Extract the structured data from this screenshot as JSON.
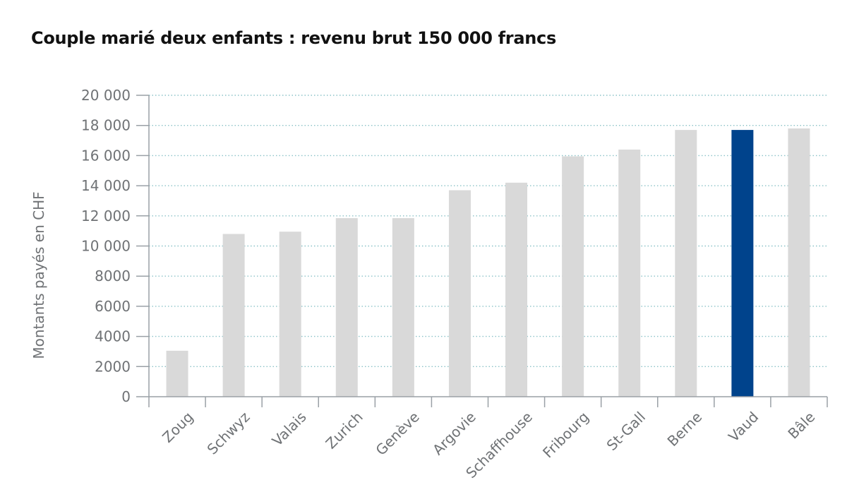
{
  "chart_data": {
    "type": "bar",
    "title": "Couple marié deux enfants : revenu brut 150 000 francs",
    "xlabel": "",
    "ylabel": "Montants payés en CHF",
    "categories": [
      "Zoug",
      "Schwyz",
      "Valais",
      "Zurich",
      "Genève",
      "Argovie",
      "Schaffhouse",
      "Fribourg",
      "St-Gall",
      "Berne",
      "Vaud",
      "Bâle"
    ],
    "values": [
      3050,
      10800,
      10950,
      11850,
      11850,
      13700,
      14200,
      15950,
      16400,
      17700,
      17700,
      17800
    ],
    "highlight": "Vaud",
    "ylim": [
      0,
      20000
    ],
    "yticks": [
      0,
      2000,
      4000,
      6000,
      8000,
      10000,
      12000,
      14000,
      16000,
      18000,
      20000
    ],
    "ytick_labels": [
      "0",
      "2000",
      "4000",
      "6000",
      "8000",
      "10 000",
      "12 000",
      "14 000",
      "16 000",
      "18 000",
      "20 000"
    ],
    "grid": true,
    "colors": {
      "bar": "#d9d9d9",
      "highlight": "#00438c",
      "grid": "#8cc3c8",
      "axis": "#9aa0a6",
      "text": "#6f7275"
    }
  }
}
